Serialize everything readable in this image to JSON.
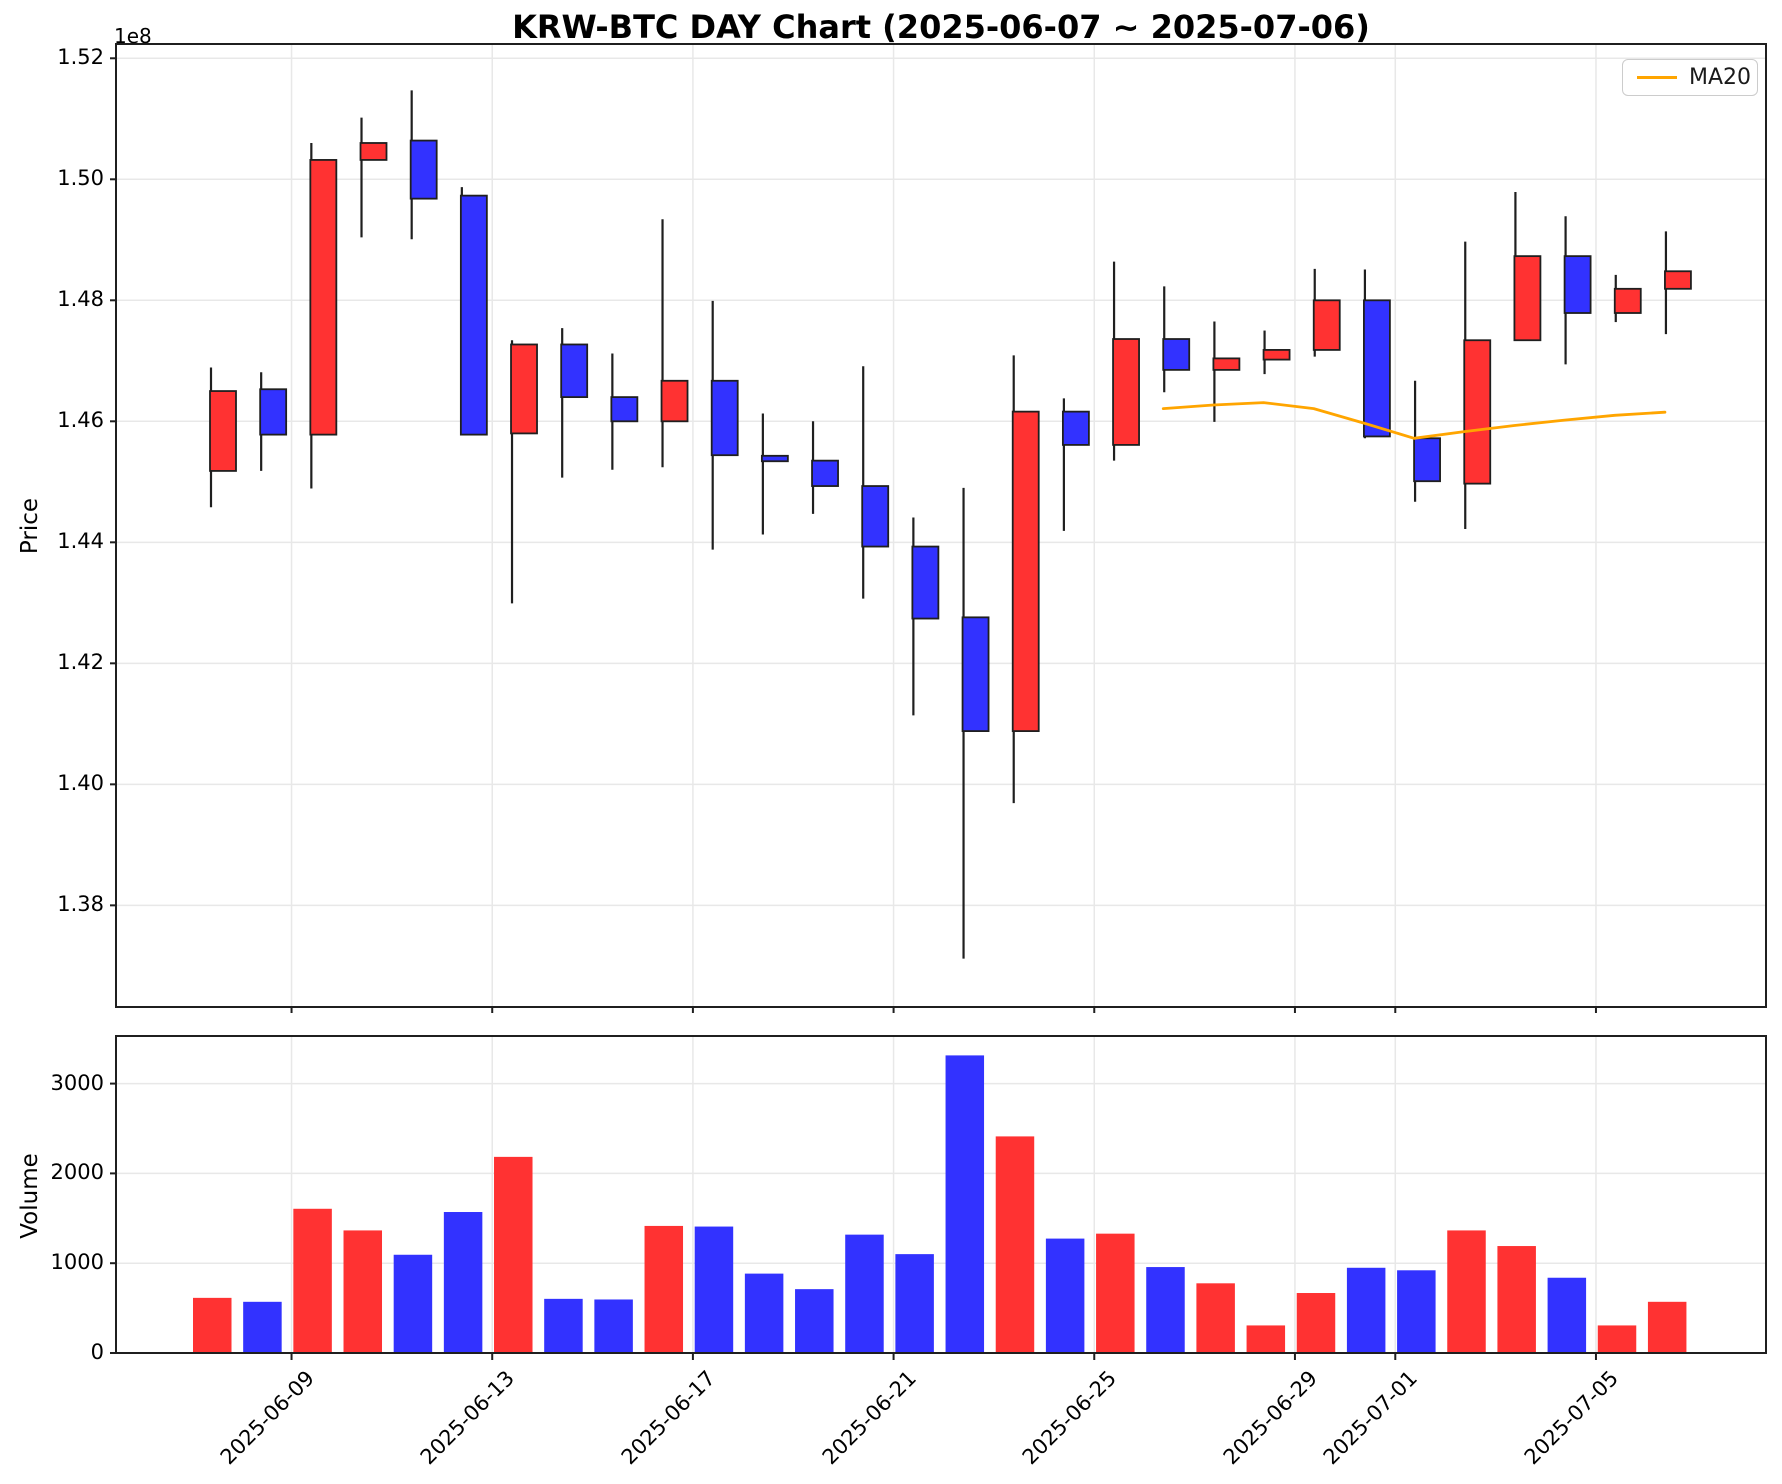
{
  "title": "KRW-BTC DAY Chart (2025-06-07 ~ 2025-07-06)",
  "legend": {
    "ma20_label": "MA20"
  },
  "price_axis": {
    "label": "Price",
    "offset_label": "1e8"
  },
  "volume_axis": {
    "label": "Volume"
  },
  "colors": {
    "up": "#ff3232",
    "down": "#3232ff",
    "edge": "#1f1f1f",
    "wick": "#1f1f1f",
    "grid": "#e8e8e8",
    "spine": "#1f1f1f",
    "ma20": "#ffa500",
    "background": "#ffffff"
  },
  "chart_data": {
    "type": "candlestick-with-volume",
    "title": "KRW-BTC DAY Chart (2025-06-07 ~ 2025-07-06)",
    "ylabel_price": "Price",
    "ylabel_volume": "Volume",
    "y_offset_text": "1e8",
    "legend_entries": [
      "MA20"
    ],
    "legend_position": "upper right",
    "grid": true,
    "price_ylim": [
      1.3632,
      1.52236
    ],
    "volume_ylim": [
      0,
      3530
    ],
    "price_gridlines": [
      1.38,
      1.4,
      1.42,
      1.44,
      1.46,
      1.48,
      1.5,
      1.52
    ],
    "volume_gridlines": [
      0,
      1000,
      2000,
      3000
    ],
    "x_tick_indices": [
      2,
      6,
      10,
      14,
      18,
      22,
      24,
      28
    ],
    "x_tick_labels": [
      "2025-06-09",
      "2025-06-13",
      "2025-06-17",
      "2025-06-21",
      "2025-06-25",
      "2025-06-29",
      "2025-07-01",
      "2025-07-05"
    ],
    "dates": [
      "2025-06-07",
      "2025-06-08",
      "2025-06-09",
      "2025-06-10",
      "2025-06-11",
      "2025-06-12",
      "2025-06-13",
      "2025-06-14",
      "2025-06-15",
      "2025-06-16",
      "2025-06-17",
      "2025-06-18",
      "2025-06-19",
      "2025-06-20",
      "2025-06-21",
      "2025-06-22",
      "2025-06-23",
      "2025-06-24",
      "2025-06-25",
      "2025-06-26",
      "2025-06-27",
      "2025-06-28",
      "2025-06-29",
      "2025-06-30",
      "2025-07-01",
      "2025-07-02",
      "2025-07-03",
      "2025-07-04",
      "2025-07-05",
      "2025-07-06"
    ],
    "ohlc": [
      [
        1.4518,
        1.4689,
        1.4458,
        1.465
      ],
      [
        1.4653,
        1.4681,
        1.4518,
        1.4578
      ],
      [
        1.4578,
        1.506,
        1.4489,
        1.5032
      ],
      [
        1.5032,
        1.5102,
        1.4904,
        1.506
      ],
      [
        1.5064,
        1.5147,
        1.4901,
        1.4968
      ],
      [
        1.4973,
        1.4987,
        1.4578,
        1.4578
      ],
      [
        1.458,
        1.4734,
        1.4299,
        1.4727
      ],
      [
        1.4727,
        1.4754,
        1.4507,
        1.464
      ],
      [
        1.464,
        1.4712,
        1.452,
        1.46
      ],
      [
        1.46,
        1.4934,
        1.4524,
        1.4667
      ],
      [
        1.4667,
        1.4799,
        1.4388,
        1.4544
      ],
      [
        1.4543,
        1.4613,
        1.4413,
        1.4534
      ],
      [
        1.4535,
        1.46,
        1.4447,
        1.4493
      ],
      [
        1.4493,
        1.4691,
        1.4307,
        1.4393
      ],
      [
        1.4393,
        1.4441,
        1.4114,
        1.4274
      ],
      [
        1.4276,
        1.449,
        1.3712,
        1.4088
      ],
      [
        1.4088,
        1.4709,
        1.3969,
        1.4616
      ],
      [
        1.4616,
        1.4638,
        1.4419,
        1.4561
      ],
      [
        1.4561,
        1.4864,
        1.4535,
        1.4736
      ],
      [
        1.4736,
        1.4823,
        1.4648,
        1.4685
      ],
      [
        1.4685,
        1.4765,
        1.4599,
        1.4704
      ],
      [
        1.4702,
        1.475,
        1.4678,
        1.4718
      ],
      [
        1.4718,
        1.4852,
        1.4707,
        1.48
      ],
      [
        1.48,
        1.4851,
        1.4572,
        1.4575
      ],
      [
        1.4572,
        1.4667,
        1.4467,
        1.4501
      ],
      [
        1.4497,
        1.4897,
        1.4422,
        1.4734
      ],
      [
        1.4734,
        1.4979,
        1.4734,
        1.4873
      ],
      [
        1.4873,
        1.4939,
        1.4694,
        1.4779
      ],
      [
        1.4779,
        1.4842,
        1.4764,
        1.4819
      ],
      [
        1.4819,
        1.4914,
        1.4744,
        1.4848
      ]
    ],
    "volumes": [
      614,
      570,
      1606,
      1365,
      1094,
      1570,
      2184,
      603,
      596,
      1415,
      1408,
      884,
      711,
      1318,
      1101,
      3314,
      2412,
      1274,
      1329,
      957,
      776,
      307,
      668,
      949,
      921,
      1365,
      1191,
      838,
      307,
      570
    ],
    "ma20": {
      "name": "MA20",
      "start_index": 19,
      "values": [
        1.4621,
        1.4627,
        1.4631,
        1.4621,
        1.4597,
        1.4572,
        1.4583,
        1.4593,
        1.4602,
        1.461,
        1.4615
      ]
    }
  }
}
